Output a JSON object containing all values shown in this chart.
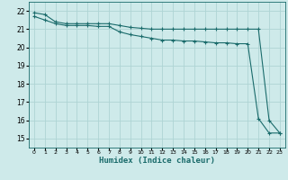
{
  "xlabel": "Humidex (Indice chaleur)",
  "ylabel": "",
  "bg_color": "#ceeaea",
  "grid_color": "#aed4d4",
  "line_color": "#1a6b6b",
  "xlim": [
    -0.5,
    23.5
  ],
  "ylim": [
    14.5,
    22.5
  ],
  "xticks": [
    0,
    1,
    2,
    3,
    4,
    5,
    6,
    7,
    8,
    9,
    10,
    11,
    12,
    13,
    14,
    15,
    16,
    17,
    18,
    19,
    20,
    21,
    22,
    23
  ],
  "yticks": [
    15,
    16,
    17,
    18,
    19,
    20,
    21,
    22
  ],
  "line1_x": [
    0,
    1,
    2,
    3,
    4,
    5,
    6,
    7,
    8,
    9,
    10,
    11,
    12,
    13,
    14,
    15,
    16,
    17,
    18,
    19,
    20,
    21,
    22,
    23
  ],
  "line1_y": [
    21.9,
    21.8,
    21.4,
    21.3,
    21.3,
    21.3,
    21.3,
    21.3,
    21.2,
    21.1,
    21.05,
    21.0,
    21.0,
    21.0,
    21.0,
    21.0,
    21.0,
    21.0,
    21.0,
    21.0,
    21.0,
    21.0,
    16.0,
    15.3
  ],
  "line2_x": [
    0,
    1,
    2,
    3,
    4,
    5,
    6,
    7,
    8,
    9,
    10,
    11,
    12,
    13,
    14,
    15,
    16,
    17,
    18,
    19,
    20,
    21,
    22,
    23
  ],
  "line2_y": [
    21.7,
    21.5,
    21.3,
    21.2,
    21.2,
    21.2,
    21.15,
    21.15,
    20.85,
    20.7,
    20.6,
    20.5,
    20.4,
    20.4,
    20.35,
    20.35,
    20.3,
    20.25,
    20.25,
    20.2,
    20.2,
    16.1,
    15.3,
    15.3
  ]
}
